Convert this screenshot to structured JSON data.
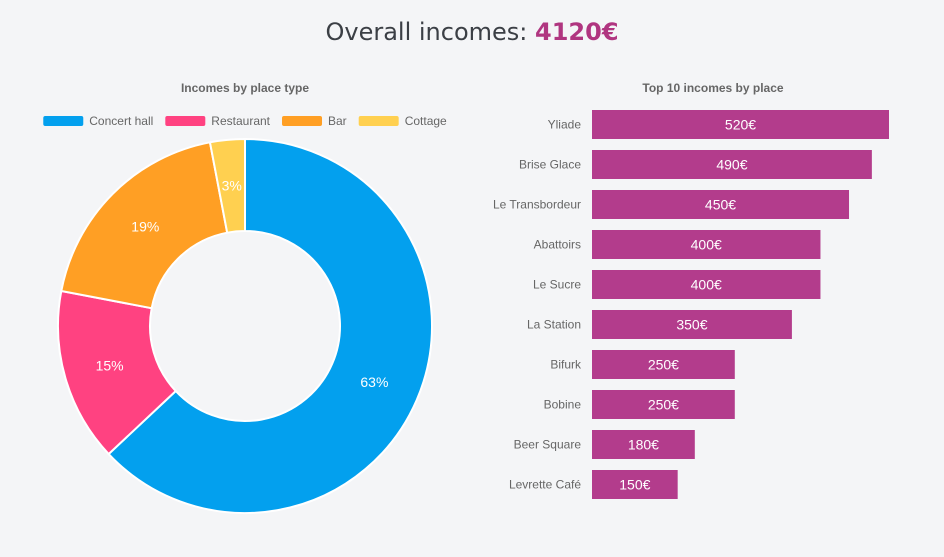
{
  "header": {
    "title_label": "Overall incomes:",
    "total": "4120€"
  },
  "chart_data": [
    {
      "type": "pie",
      "variant": "doughnut",
      "title": "Incomes by place type",
      "legend_position": "top",
      "categories": [
        "Concert hall",
        "Restaurant",
        "Bar",
        "Cottage"
      ],
      "values": [
        63,
        15,
        19,
        3
      ],
      "value_unit": "%",
      "colors": [
        "#03a0ee",
        "#ff4281",
        "#ff9f24",
        "#ffd050"
      ]
    },
    {
      "type": "bar",
      "orientation": "horizontal",
      "title": "Top 10 incomes by place",
      "categories": [
        "Yliade",
        "Brise Glace",
        "Le Transbordeur",
        "Abattoirs",
        "Le Sucre",
        "La Station",
        "Bifurk",
        "Bobine",
        "Beer Square",
        "Levrette Café"
      ],
      "values": [
        520,
        490,
        450,
        400,
        400,
        350,
        250,
        250,
        180,
        150
      ],
      "value_suffix": "€",
      "xlim": [
        0,
        520
      ],
      "color": "#b33c8c"
    }
  ]
}
